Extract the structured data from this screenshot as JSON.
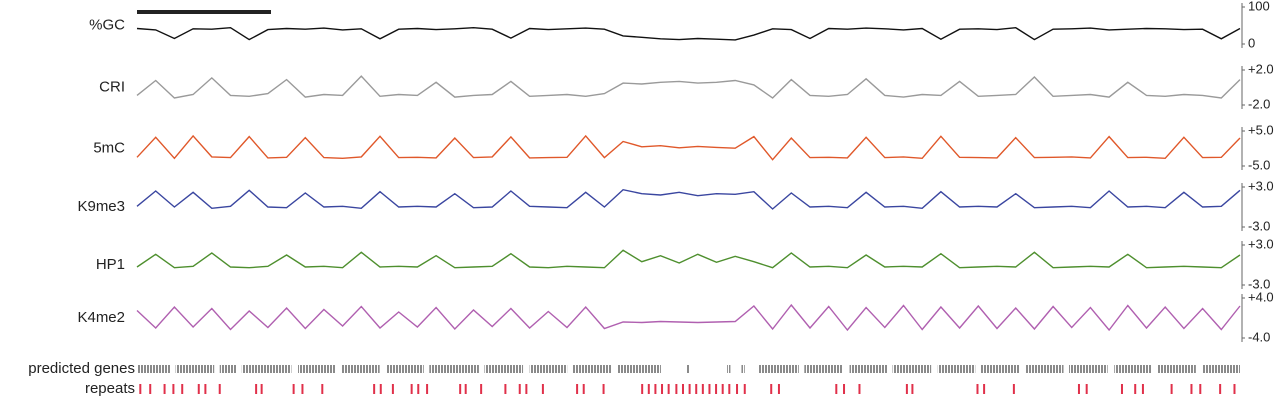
{
  "chart_data": [
    {
      "type": "line",
      "title": "%GC",
      "color": "#111111",
      "ylim": [
        0,
        100
      ],
      "yticks": [
        100,
        0
      ],
      "values": [
        42,
        38,
        15,
        41,
        40,
        44,
        12,
        39,
        42,
        40,
        43,
        38,
        41,
        14,
        40,
        42,
        39,
        41,
        44,
        40,
        16,
        42,
        39,
        41,
        43,
        40,
        22,
        18,
        14,
        12,
        15,
        13,
        11,
        24,
        41,
        39,
        15,
        42,
        40,
        43,
        41,
        38,
        42,
        13,
        40,
        41,
        39,
        44,
        12,
        40,
        41,
        43,
        38,
        40,
        42,
        41,
        39,
        40,
        14,
        42
      ]
    },
    {
      "type": "line",
      "title": "CRI",
      "color": "#9a9a9a",
      "ylim": [
        -2,
        2
      ],
      "yticks": [
        {
          "value": 2,
          "label": "+2.0"
        },
        {
          "value": -2,
          "label": "-2.0"
        }
      ],
      "values": [
        -0.9,
        0.8,
        -1.2,
        -0.8,
        1.1,
        -0.9,
        -1.0,
        -0.7,
        0.9,
        -1.1,
        -0.8,
        -0.9,
        1.3,
        -1.0,
        -0.8,
        -0.9,
        0.6,
        -1.1,
        -0.9,
        -0.8,
        0.7,
        -1.0,
        -0.9,
        -0.8,
        -1.0,
        -0.7,
        0.5,
        0.4,
        0.6,
        0.7,
        0.5,
        0.6,
        0.8,
        0.3,
        -1.2,
        0.9,
        -0.9,
        -1.0,
        -0.8,
        1.0,
        -0.9,
        -1.1,
        -0.8,
        -0.9,
        0.7,
        -1.0,
        -0.9,
        -0.8,
        1.2,
        -1.0,
        -0.9,
        -0.8,
        -1.1,
        0.6,
        -0.9,
        -1.0,
        -0.8,
        -0.9,
        -1.2,
        0.9
      ]
    },
    {
      "type": "line",
      "title": "5mC",
      "color": "#e0582a",
      "ylim": [
        -5,
        5
      ],
      "yticks": [
        {
          "value": 5,
          "label": "+5.0"
        },
        {
          "value": -5,
          "label": "-5.0"
        }
      ],
      "values": [
        -2.5,
        3.2,
        -2.8,
        3.6,
        -2.4,
        -2.6,
        3.4,
        -2.7,
        -2.5,
        3.1,
        -2.6,
        -2.8,
        -2.4,
        3.5,
        -2.6,
        -2.5,
        -2.7,
        3.0,
        -2.6,
        -2.4,
        3.3,
        -2.7,
        -2.6,
        -2.5,
        3.6,
        -2.6,
        2.0,
        0.5,
        0.8,
        0.2,
        0.6,
        0.3,
        0.1,
        3.4,
        -3.2,
        3.0,
        -2.6,
        -2.5,
        -2.7,
        3.2,
        -2.6,
        -2.4,
        -2.8,
        3.5,
        -2.5,
        -2.6,
        -2.7,
        3.1,
        -2.6,
        -2.5,
        -2.4,
        -2.7,
        3.4,
        -2.6,
        -2.5,
        -2.8,
        3.2,
        -2.6,
        -2.5,
        3.0
      ]
    },
    {
      "type": "line",
      "title": "K9me3",
      "color": "#3a46a0",
      "ylim": [
        -3,
        3
      ],
      "yticks": [
        {
          "value": 3,
          "label": "+3.0"
        },
        {
          "value": -3,
          "label": "-3.0"
        }
      ],
      "values": [
        0.1,
        2.4,
        0.0,
        2.2,
        -0.2,
        0.1,
        2.5,
        0.0,
        -0.1,
        2.1,
        0.0,
        0.1,
        -0.2,
        2.3,
        0.0,
        0.1,
        0.0,
        2.0,
        -0.1,
        0.0,
        2.4,
        0.1,
        0.0,
        -0.1,
        2.2,
        0.0,
        2.6,
        2.0,
        1.8,
        2.2,
        1.7,
        2.0,
        1.9,
        2.3,
        -0.3,
        2.1,
        0.0,
        0.1,
        -0.1,
        2.2,
        0.0,
        0.1,
        -0.2,
        2.3,
        0.0,
        0.1,
        0.0,
        2.0,
        -0.1,
        0.0,
        0.1,
        -0.1,
        2.4,
        0.0,
        0.1,
        -0.1,
        2.2,
        0.0,
        0.1,
        2.5
      ]
    },
    {
      "type": "line",
      "title": "HP1",
      "color": "#4e8f2e",
      "ylim": [
        -3,
        3
      ],
      "yticks": [
        {
          "value": 3,
          "label": "+3.0"
        },
        {
          "value": -3,
          "label": "-3.0"
        }
      ],
      "values": [
        -0.3,
        1.6,
        -0.4,
        -0.2,
        1.8,
        -0.3,
        -0.4,
        -0.2,
        1.5,
        -0.3,
        -0.2,
        -0.4,
        1.9,
        -0.3,
        -0.2,
        -0.3,
        1.4,
        -0.4,
        -0.3,
        -0.2,
        1.7,
        -0.3,
        -0.4,
        -0.2,
        -0.3,
        -0.4,
        2.2,
        0.5,
        1.4,
        0.3,
        1.6,
        0.4,
        1.3,
        0.5,
        -0.4,
        1.8,
        -0.3,
        -0.2,
        -0.4,
        1.5,
        -0.3,
        -0.2,
        -0.3,
        1.7,
        -0.4,
        -0.3,
        -0.2,
        -0.3,
        1.9,
        -0.4,
        -0.3,
        -0.2,
        -0.3,
        1.6,
        -0.4,
        -0.3,
        -0.2,
        -0.3,
        -0.4,
        1.5
      ]
    },
    {
      "type": "line",
      "title": "K4me2",
      "color": "#b060b0",
      "ylim": [
        -4,
        4
      ],
      "yticks": [
        {
          "value": 4,
          "label": "+4.0"
        },
        {
          "value": -4,
          "label": "-4.0"
        }
      ],
      "values": [
        1.5,
        -2.0,
        2.2,
        -1.8,
        1.9,
        -2.3,
        1.4,
        -1.9,
        2.0,
        -2.1,
        1.7,
        -1.6,
        2.3,
        -2.0,
        1.2,
        -1.8,
        2.1,
        -2.2,
        1.6,
        -1.7,
        1.9,
        -2.0,
        1.3,
        -1.9,
        2.2,
        -2.1,
        -0.8,
        -0.9,
        -0.7,
        -0.8,
        -0.9,
        -0.8,
        -0.7,
        2.4,
        -2.2,
        2.6,
        -2.0,
        2.3,
        -2.4,
        2.1,
        -1.9,
        2.5,
        -2.3,
        2.2,
        -2.0,
        2.4,
        -2.1,
        2.0,
        -2.2,
        2.3,
        -1.9,
        2.1,
        -2.4,
        2.5,
        -2.0,
        2.2,
        -2.1,
        1.9,
        -2.3,
        2.4
      ]
    },
    {
      "type": "features",
      "xlim": [
        0,
        100
      ],
      "series": [
        {
          "name": "predicted genes",
          "color": "#8a8a8a",
          "intervals": [
            [
              0,
              3
            ],
            [
              3.5,
              7
            ],
            [
              7.5,
              9
            ],
            [
              9.5,
              14
            ],
            [
              14.6,
              18
            ],
            [
              18.5,
              22
            ],
            [
              22.6,
              26
            ],
            [
              26.5,
              31
            ],
            [
              31.5,
              35
            ],
            [
              35.6,
              39
            ],
            [
              39.5,
              43
            ],
            [
              43.6,
              47.5
            ],
            [
              49.8,
              50.1
            ],
            [
              53.5,
              53.8
            ],
            [
              54.8,
              55.1
            ],
            [
              56.3,
              60
            ],
            [
              60.5,
              64
            ],
            [
              64.6,
              68
            ],
            [
              68.5,
              72
            ],
            [
              72.6,
              76
            ],
            [
              76.5,
              80
            ],
            [
              80.6,
              84
            ],
            [
              84.5,
              88
            ],
            [
              88.6,
              92
            ],
            [
              92.5,
              96
            ],
            [
              96.6,
              100
            ]
          ]
        },
        {
          "name": "repeats",
          "color": "#e0304a",
          "positions": [
            0.3,
            1.2,
            2.5,
            3.3,
            4.1,
            5.6,
            6.2,
            7.5,
            10.8,
            11.3,
            14.2,
            15,
            16.8,
            21.5,
            22.1,
            23.2,
            24.9,
            25.5,
            26.3,
            29.3,
            29.8,
            31.2,
            33.4,
            34.7,
            35.3,
            36.8,
            39.9,
            40.5,
            42.3,
            45.8,
            46.4,
            47,
            47.6,
            48.2,
            48.9,
            49.5,
            50.1,
            50.7,
            51.3,
            51.9,
            52.5,
            53.1,
            53.7,
            54.4,
            55.1,
            57.5,
            58.2,
            63.4,
            64.1,
            65.5,
            69.8,
            70.3,
            76.2,
            76.8,
            79.5,
            85.4,
            86.1,
            89.3,
            90.5,
            91.2,
            93.8,
            95.6,
            96.4,
            98.2,
            99.5
          ]
        }
      ]
    }
  ]
}
